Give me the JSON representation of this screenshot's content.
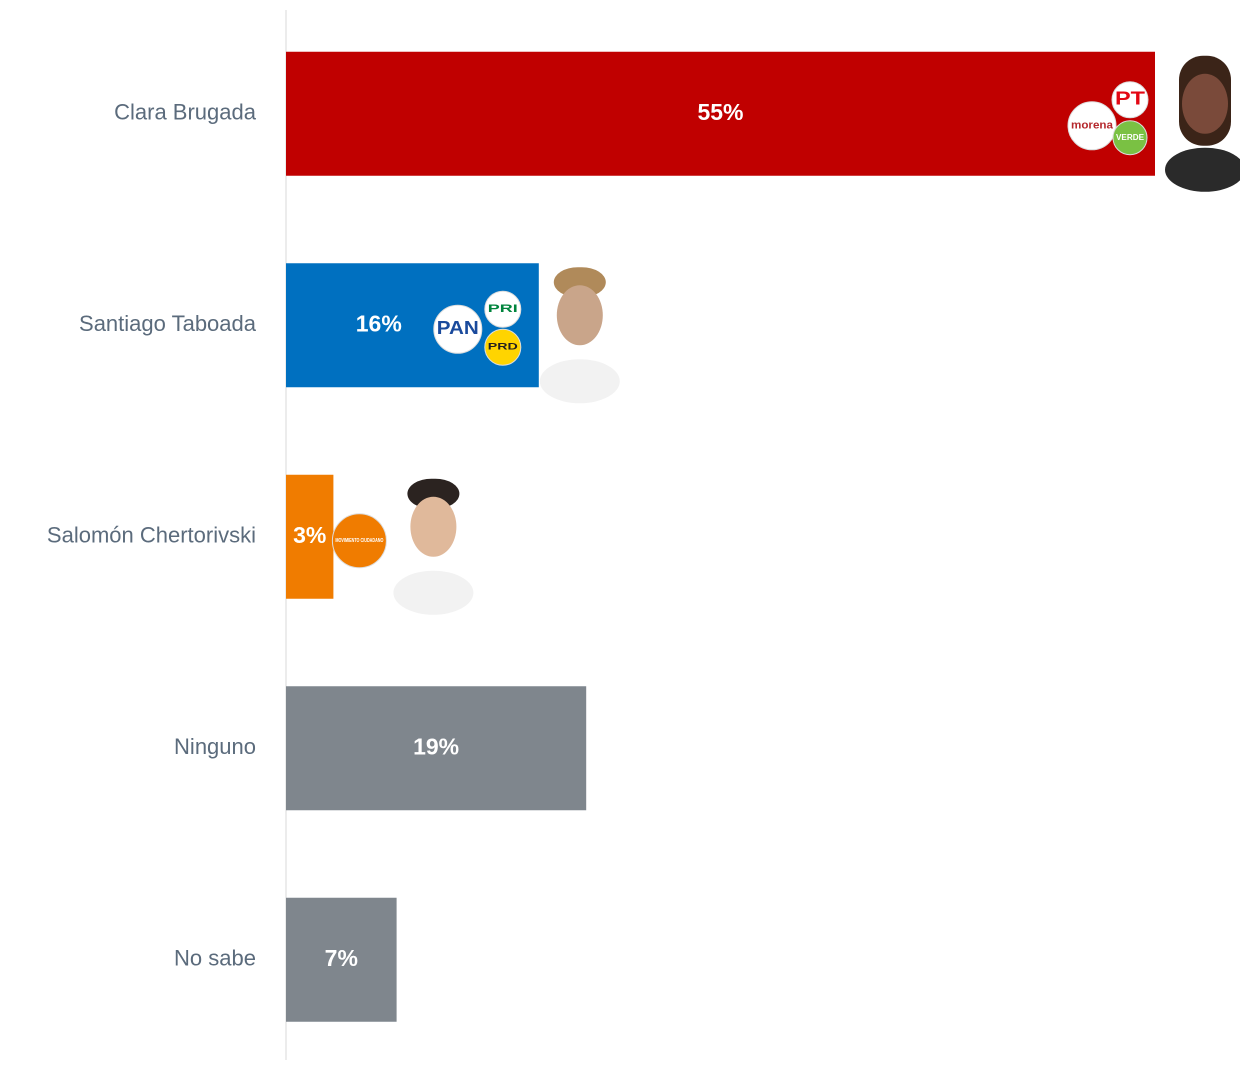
{
  "chart_data": {
    "type": "bar",
    "orientation": "horizontal",
    "categories": [
      "Clara Brugada",
      "Santiago Taboada",
      "Salomón Chertorivski",
      "Ninguno",
      "No sabe"
    ],
    "values": [
      55,
      16,
      3,
      19,
      7
    ],
    "value_labels": [
      "55%",
      "16%",
      "3%",
      "19%",
      "7%"
    ],
    "colors": [
      "#c00000",
      "#0070c0",
      "#f07c00",
      "#7f868d",
      "#7f868d"
    ],
    "xlim": [
      0,
      55
    ],
    "party_logos": [
      [
        "morena",
        "PT",
        "VERDE"
      ],
      [
        "PAN",
        "PRI",
        "PRD"
      ],
      [
        "MOVIMIENTO CIUDADANO"
      ]
    ]
  }
}
